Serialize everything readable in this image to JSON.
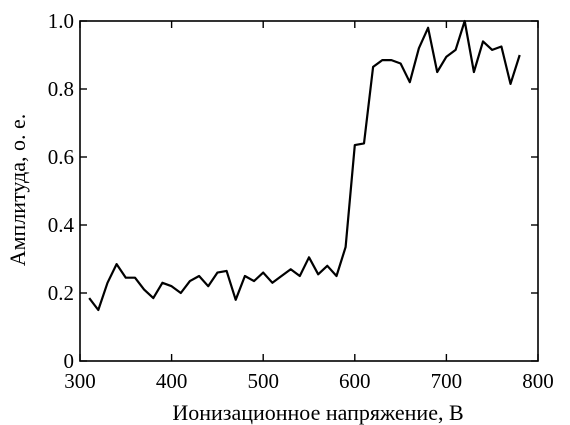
{
  "chart_data": {
    "type": "line",
    "xlabel": "Ионизационное напряжение, В",
    "ylabel": "Амплитуда, о. е.",
    "xlim": [
      300,
      800
    ],
    "ylim": [
      0,
      1.0
    ],
    "x_ticks": [
      300,
      400,
      500,
      600,
      700,
      800
    ],
    "x_tick_labels": [
      "300",
      "400",
      "500",
      "600",
      "700",
      "800"
    ],
    "y_ticks": [
      0,
      0.2,
      0.4,
      0.6,
      0.8,
      1.0
    ],
    "y_tick_labels": [
      "0",
      "0.2",
      "0.4",
      "0.6",
      "0.8",
      "1.0"
    ],
    "grid": false,
    "series": [
      {
        "color": "#000000",
        "x": [
          310,
          320,
          330,
          340,
          350,
          360,
          370,
          380,
          390,
          400,
          410,
          420,
          430,
          440,
          450,
          460,
          470,
          480,
          490,
          500,
          510,
          520,
          530,
          540,
          550,
          560,
          570,
          580,
          590,
          600,
          610,
          620,
          630,
          640,
          650,
          660,
          670,
          680,
          690,
          700,
          710,
          720,
          730,
          740,
          750,
          760,
          770,
          780
        ],
        "y": [
          0.185,
          0.15,
          0.23,
          0.285,
          0.245,
          0.245,
          0.21,
          0.185,
          0.23,
          0.22,
          0.2,
          0.235,
          0.25,
          0.22,
          0.26,
          0.265,
          0.18,
          0.25,
          0.235,
          0.26,
          0.23,
          0.25,
          0.27,
          0.25,
          0.305,
          0.255,
          0.28,
          0.25,
          0.335,
          0.635,
          0.64,
          0.865,
          0.885,
          0.885,
          0.875,
          0.82,
          0.92,
          0.98,
          0.85,
          0.895,
          0.915,
          1.0,
          0.85,
          0.94,
          0.915,
          0.925,
          0.815,
          0.9
        ]
      }
    ]
  }
}
